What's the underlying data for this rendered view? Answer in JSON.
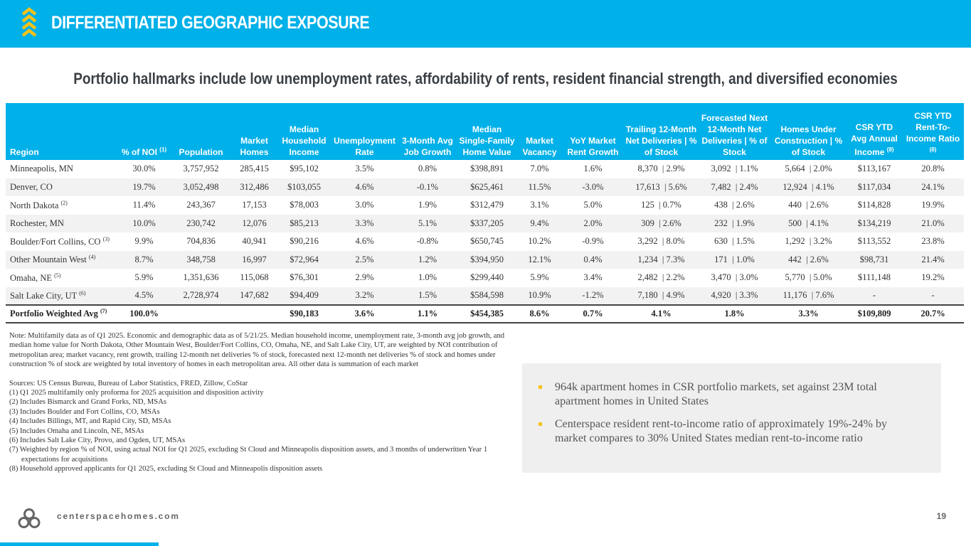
{
  "header": {
    "title": "DIFFERENTIATED GEOGRAPHIC EXPOSURE",
    "brand_color": "#00b0e8",
    "accent_color": "#f5c21b",
    "icon": "chevron-stack-icon"
  },
  "subtitle": "Portfolio hallmarks include low unemployment rates, affordability of rents, resident financial strength, and diversified economies",
  "table": {
    "columns": [
      "Region",
      "% of NOI",
      "Population",
      "Market Homes",
      "Median Household Income",
      "Unemployment Rate",
      "3-Month Avg Job Growth",
      "Median Single-Family Home Value",
      "Market Vacancy",
      "YoY Market Rent Growth",
      "Trailing 12-Month Net Deliveries | % of Stock",
      "Forecasted Next 12-Month Net Deliveries | % of Stock",
      "Homes Under Construction | % of Stock",
      "CSR YTD Avg Annual Income",
      "CSR YTD Rent-To-Income Ratio"
    ],
    "column_footnotes": {
      "1": "(1)",
      "13": "(8)",
      "14": "(8)"
    },
    "rows": [
      {
        "region": "Minneapolis, MN",
        "fn": "",
        "cells": [
          "30.0%",
          "3,757,952",
          "285,415",
          "$95,102",
          "3.5%",
          "0.8%",
          "$398,891",
          "7.0%",
          "1.6%",
          "8,370  | 2.9%",
          "3,092  | 1.1%",
          "5,664  | 2.0%",
          "$113,167",
          "20.8%"
        ]
      },
      {
        "region": "Denver, CO",
        "fn": "",
        "cells": [
          "19.7%",
          "3,052,498",
          "312,486",
          "$103,055",
          "4.6%",
          "-0.1%",
          "$625,461",
          "11.5%",
          "-3.0%",
          "17,613  | 5.6%",
          "7,482  | 2.4%",
          "12,924  | 4.1%",
          "$117,034",
          "24.1%"
        ]
      },
      {
        "region": "North Dakota",
        "fn": "(2)",
        "cells": [
          "11.4%",
          "243,367",
          "17,153",
          "$78,003",
          "3.0%",
          "1.9%",
          "$312,479",
          "3.1%",
          "5.0%",
          "125  | 0.7%",
          "438  | 2.6%",
          "440  | 2.6%",
          "$114,828",
          "19.9%"
        ]
      },
      {
        "region": "Rochester, MN",
        "fn": "",
        "cells": [
          "10.0%",
          "230,742",
          "12,076",
          "$85,213",
          "3.3%",
          "5.1%",
          "$337,205",
          "9.4%",
          "2.0%",
          "309  | 2.6%",
          "232  | 1.9%",
          "500  | 4.1%",
          "$134,219",
          "21.0%"
        ]
      },
      {
        "region": "Boulder/Fort Collins, CO",
        "fn": "(3)",
        "cells": [
          "9.9%",
          "704,836",
          "40,941",
          "$90,216",
          "4.6%",
          "-0.8%",
          "$650,745",
          "10.2%",
          "-0.9%",
          "3,292  | 8.0%",
          "630  | 1.5%",
          "1,292  | 3.2%",
          "$113,552",
          "23.8%"
        ]
      },
      {
        "region": "Other Mountain West",
        "fn": "(4)",
        "cells": [
          "8.7%",
          "348,758",
          "16,997",
          "$72,964",
          "2.5%",
          "1.2%",
          "$394,950",
          "12.1%",
          "0.4%",
          "1,234  | 7.3%",
          "171  | 1.0%",
          "442  | 2.6%",
          "$98,731",
          "21.4%"
        ]
      },
      {
        "region": "Omaha, NE",
        "fn": "(5)",
        "cells": [
          "5.9%",
          "1,351,636",
          "115,068",
          "$76,301",
          "2.9%",
          "1.0%",
          "$299,440",
          "5.9%",
          "3.4%",
          "2,482  | 2.2%",
          "3,470  | 3.0%",
          "5,770  | 5.0%",
          "$111,148",
          "19.2%"
        ]
      },
      {
        "region": "Salt Lake City, UT",
        "fn": "(6)",
        "cells": [
          "4.5%",
          "2,728,974",
          "147,682",
          "$94,409",
          "3.2%",
          "1.5%",
          "$584,598",
          "10.9%",
          "-1.2%",
          "7,180  | 4.9%",
          "4,920  | 3.3%",
          "11,176  | 7.6%",
          "-",
          "-"
        ]
      }
    ],
    "total": {
      "region": "Portfolio Weighted Avg",
      "fn": "(7)",
      "cells": [
        "100.0%",
        "",
        "",
        "$90,183",
        "3.6%",
        "1.1%",
        "$454,385",
        "8.6%",
        "0.7%",
        "4.1%",
        "1.8%",
        "3.3%",
        "$109,809",
        "20.7%"
      ]
    }
  },
  "notes": {
    "note": "Note: Multifamily data as of Q1 2025. Economic and demographic data as of 5/21/25. Median household income, unemployment rate, 3-month avg job growth, and median home value for North Dakota, Other Mountain West, Boulder/Fort Collins, CO, Omaha, NE, and Salt Lake City, UT, are weighted by NOI contribution of metropolitan area; market vacancy, rent growth, trailing 12-month net deliveries % of stock, forecasted next 12-month net deliveries % of stock and homes under construction % of stock are weighted by total inventory of homes in each metropolitan area. All other data is summation of each market",
    "sources": "Sources: US Census Bureau, Bureau of Labor Statistics, FRED, Zillow, CoStar",
    "footnotes": [
      "(1)  Q1 2025 multifamily only proforma for 2025 acquisition and disposition activity",
      "(2)  Includes Bismarck and Grand Forks, ND, MSAs",
      "(3)  Includes Boulder and Fort Collins, CO, MSAs",
      "(4)  Includes Billings, MT, and Rapid City, SD, MSAs",
      "(5)  Includes Omaha and Lincoln, NE, MSAs",
      "(6)  Includes Salt Lake City, Provo, and Ogden, UT, MSAs",
      "(7)  Weighted by region % of NOI, using actual NOI for Q1 2025, excluding St Cloud and Minneapolis disposition assets, and 3 months of underwritten Year 1 expectations for acquisitions",
      "(8)  Household approved applicants for Q1 2025, excluding St Cloud and Minneapolis disposition assets"
    ]
  },
  "callout": {
    "bullets": [
      "964k apartment homes in CSR portfolio markets, set against 23M total apartment homes in United States",
      "Centerspace resident rent-to-income ratio of approximately 19%-24% by market compares to 30% United States median rent-to-income ratio"
    ]
  },
  "footer": {
    "site": "centerspacehomes.com",
    "page": "19",
    "logo": "centerspace-logo-icon"
  }
}
